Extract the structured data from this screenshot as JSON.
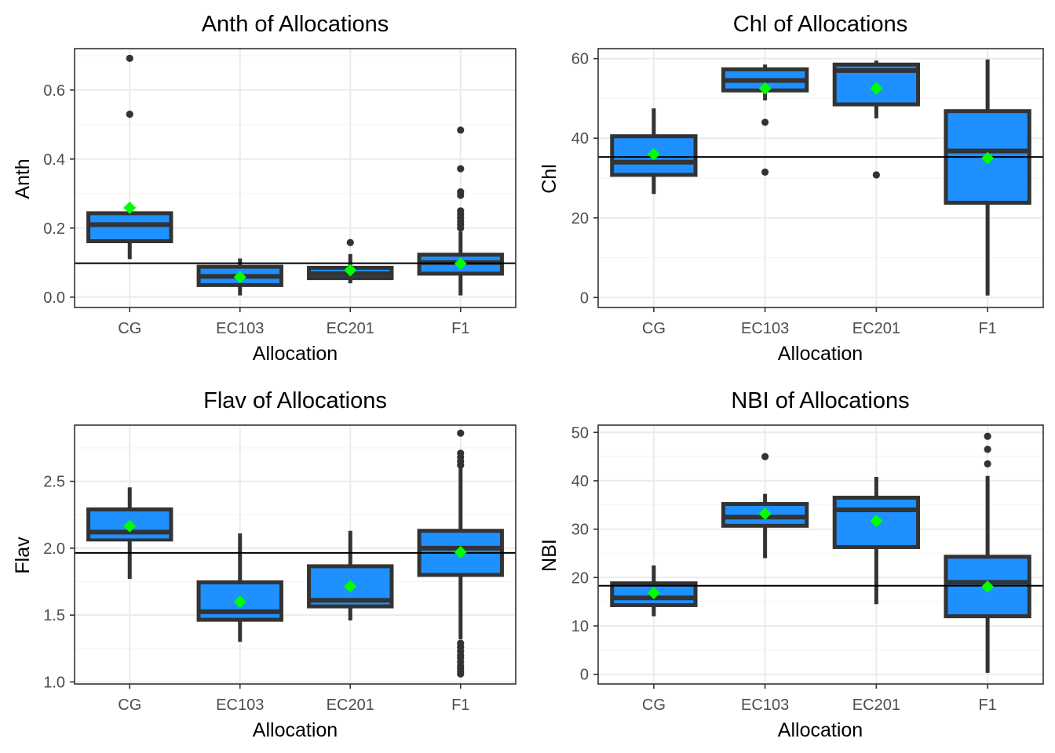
{
  "colors": {
    "box_fill": "#1E90FF",
    "box_line": "#333333",
    "mean_marker": "#00FF00",
    "reference_line": "#000000",
    "grid_major": "#EBEBEB",
    "grid_minor": "#F5F5F5",
    "panel_border": "#333333",
    "tick_text": "#4D4D4D"
  },
  "chart_data": [
    {
      "type": "box",
      "title": "Anth of Allocations",
      "xlabel": "Allocation",
      "ylabel": "Anth",
      "categories": [
        "CG",
        "EC103",
        "EC201",
        "F1"
      ],
      "ylim": [
        -0.03,
        0.72
      ],
      "yticks": [
        0.0,
        0.2,
        0.4,
        0.6
      ],
      "ytick_labels": [
        "0.0",
        "0.2",
        "0.4",
        "0.6"
      ],
      "grid": true,
      "reference_line": 0.098,
      "boxes": [
        {
          "category": "CG",
          "whisker_low": 0.11,
          "q1": 0.162,
          "median": 0.21,
          "q3": 0.243,
          "whisker_high": 0.243,
          "mean": 0.259,
          "outliers": [
            0.53,
            0.692
          ],
          "inner_line": 0.185
        },
        {
          "category": "EC103",
          "whisker_low": 0.005,
          "q1": 0.035,
          "median": 0.06,
          "q3": 0.088,
          "whisker_high": 0.112,
          "mean": 0.058,
          "outliers": [],
          "inner_line": 0.075
        },
        {
          "category": "EC201",
          "whisker_low": 0.04,
          "q1": 0.055,
          "median": 0.068,
          "q3": 0.085,
          "whisker_high": 0.125,
          "mean": 0.078,
          "outliers": [
            0.158
          ],
          "inner_line": 0.075
        },
        {
          "category": "F1",
          "whisker_low": 0.005,
          "q1": 0.068,
          "median": 0.1,
          "q3": 0.123,
          "whisker_high": 0.19,
          "mean": 0.097,
          "outliers": [
            0.2,
            0.21,
            0.22,
            0.23,
            0.24,
            0.25,
            0.295,
            0.305,
            0.372,
            0.484
          ],
          "inner_line": 0.08
        }
      ]
    },
    {
      "type": "box",
      "title": "Chl of Allocations",
      "xlabel": "Allocation",
      "ylabel": "Chl",
      "categories": [
        "CG",
        "EC103",
        "EC201",
        "F1"
      ],
      "ylim": [
        -2.5,
        62.5
      ],
      "yticks": [
        0,
        20,
        40,
        60
      ],
      "ytick_labels": [
        "0",
        "20",
        "40",
        "60"
      ],
      "grid": true,
      "reference_line": 35.3,
      "boxes": [
        {
          "category": "CG",
          "whisker_low": 26,
          "q1": 30.8,
          "median": 34,
          "q3": 40.5,
          "whisker_high": 47.5,
          "mean": 36.0,
          "outliers": [],
          "inner_line": 36.3
        },
        {
          "category": "EC103",
          "whisker_low": 49.5,
          "q1": 52,
          "median": 54.5,
          "q3": 57.3,
          "whisker_high": 58.5,
          "mean": 52.5,
          "outliers": [
            31.5,
            44
          ],
          "inner_line": 56.5
        },
        {
          "category": "EC201",
          "whisker_low": 45,
          "q1": 48.5,
          "median": 57,
          "q3": 58.5,
          "whisker_high": 59.5,
          "mean": 52.5,
          "outliers": [
            30.8
          ],
          "inner_line": 55.5
        },
        {
          "category": "F1",
          "whisker_low": 0.5,
          "q1": 23.8,
          "median": 36.8,
          "q3": 46.8,
          "whisker_high": 59.8,
          "mean": 35.0,
          "outliers": [],
          "inner_line": 36.8
        }
      ]
    },
    {
      "type": "box",
      "title": "Flav of Allocations",
      "xlabel": "Allocation",
      "ylabel": "Flav",
      "categories": [
        "CG",
        "EC103",
        "EC201",
        "F1"
      ],
      "ylim": [
        0.985,
        2.92
      ],
      "yticks": [
        1.0,
        1.5,
        2.0,
        2.5
      ],
      "ytick_labels": [
        "1.0",
        "1.5",
        "2.0",
        "2.5"
      ],
      "grid": true,
      "reference_line": 1.965,
      "boxes": [
        {
          "category": "CG",
          "whisker_low": 1.77,
          "q1": 2.065,
          "median": 2.12,
          "q3": 2.29,
          "whisker_high": 2.455,
          "mean": 2.165,
          "outliers": [],
          "inner_line": 2.08
        },
        {
          "category": "EC103",
          "whisker_low": 1.3,
          "q1": 1.465,
          "median": 1.525,
          "q3": 1.745,
          "whisker_high": 2.11,
          "mean": 1.6,
          "outliers": [],
          "inner_line": 1.58
        },
        {
          "category": "EC201",
          "whisker_low": 1.46,
          "q1": 1.565,
          "median": 1.61,
          "q3": 1.865,
          "whisker_high": 2.13,
          "mean": 1.715,
          "outliers": [],
          "inner_line": 1.595
        },
        {
          "category": "F1",
          "whisker_low": 1.32,
          "q1": 1.8,
          "median": 2.0,
          "q3": 2.13,
          "whisker_high": 2.6,
          "mean": 1.97,
          "outliers": [
            1.06,
            1.08,
            1.1,
            1.12,
            1.15,
            1.18,
            1.2,
            1.23,
            1.26,
            1.29,
            2.62,
            2.65,
            2.68,
            2.71,
            2.86
          ],
          "inner_line": 1.96
        }
      ]
    },
    {
      "type": "box",
      "title": "NBI of Allocations",
      "xlabel": "Allocation",
      "ylabel": "NBI",
      "categories": [
        "CG",
        "EC103",
        "EC201",
        "F1"
      ],
      "ylim": [
        -2.0,
        51.5
      ],
      "yticks": [
        0,
        10,
        20,
        30,
        40,
        50
      ],
      "ytick_labels": [
        "0",
        "10",
        "20",
        "30",
        "40",
        "50"
      ],
      "grid": true,
      "reference_line": 18.3,
      "boxes": [
        {
          "category": "CG",
          "whisker_low": 12,
          "q1": 14.3,
          "median": 15.8,
          "q3": 18.8,
          "whisker_high": 22.5,
          "mean": 16.8,
          "outliers": [],
          "inner_line": 17.5
        },
        {
          "category": "EC103",
          "whisker_low": 24,
          "q1": 30.7,
          "median": 32.5,
          "q3": 35.2,
          "whisker_high": 37.3,
          "mean": 33.2,
          "outliers": [
            45
          ],
          "inner_line": 34.3
        },
        {
          "category": "EC201",
          "whisker_low": 14.5,
          "q1": 26.3,
          "median": 34,
          "q3": 36.5,
          "whisker_high": 40.8,
          "mean": 31.7,
          "outliers": [],
          "inner_line": 35.7
        },
        {
          "category": "F1",
          "whisker_low": 0.3,
          "q1": 12,
          "median": 19,
          "q3": 24.3,
          "whisker_high": 41,
          "mean": 18.1,
          "outliers": [
            43.5,
            46.5,
            49.2
          ],
          "inner_line": 17.8
        }
      ]
    }
  ]
}
